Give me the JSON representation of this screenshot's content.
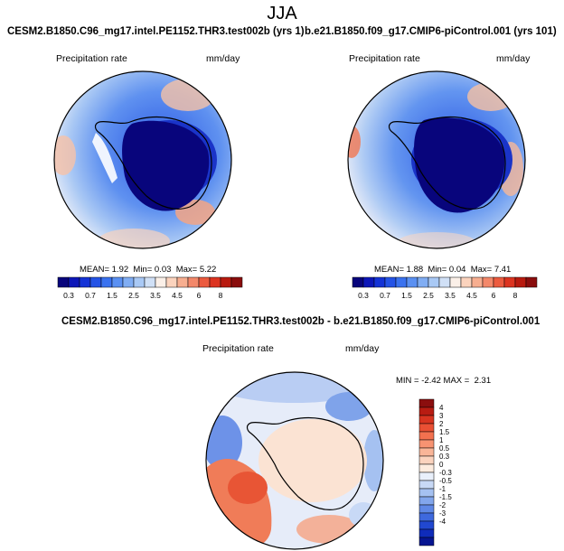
{
  "page_title": "JJA",
  "chart_data": [
    {
      "type": "heatmap",
      "title": "CESM2.B1850.C96_mg17.intel.PE1152.THR3.test002b (yrs 1)",
      "variable": "Precipitation rate",
      "units": "mm/day",
      "stats": {
        "mean_label": "MEAN=",
        "mean": "1.92",
        "min_label": "Min=",
        "min": "0.03",
        "max_label": "Max=",
        "max": "5.22"
      },
      "colorbar": {
        "orientation": "horizontal",
        "labels": [
          "0.3",
          "0.7",
          "1.5",
          "2.5",
          "3.5",
          "4.5",
          "6",
          "8"
        ],
        "colors": [
          "#08057c",
          "#0d17b8",
          "#1433d6",
          "#2453e6",
          "#3a72ef",
          "#5a90f2",
          "#80adf3",
          "#a9c9f5",
          "#d0e0f6",
          "#fbf0e8",
          "#fbd3bd",
          "#f7ae90",
          "#f3886a",
          "#ec5b3f",
          "#dc3420",
          "#b81a0f",
          "#8a0d0d"
        ]
      }
    },
    {
      "type": "heatmap",
      "title": "b.e21.B1850.f09_g17.CMIP6-piControl.001 (yrs 101)",
      "variable": "Precipitation rate",
      "units": "mm/day",
      "stats": {
        "mean_label": "MEAN=",
        "mean": "1.88",
        "min_label": "Min=",
        "min": "0.04",
        "max_label": "Max=",
        "max": "7.41"
      },
      "colorbar": {
        "orientation": "horizontal",
        "labels": [
          "0.3",
          "0.7",
          "1.5",
          "2.5",
          "3.5",
          "4.5",
          "6",
          "8"
        ],
        "colors": [
          "#08057c",
          "#0d17b8",
          "#1433d6",
          "#2453e6",
          "#3a72ef",
          "#5a90f2",
          "#80adf3",
          "#a9c9f5",
          "#d0e0f6",
          "#fbf0e8",
          "#fbd3bd",
          "#f7ae90",
          "#f3886a",
          "#ec5b3f",
          "#dc3420",
          "#b81a0f",
          "#8a0d0d"
        ]
      }
    },
    {
      "type": "heatmap",
      "title": "CESM2.B1850.C96_mg17.intel.PE1152.THR3.test002b - b.e21.B1850.f09_g17.CMIP6-piControl.001",
      "variable": "Precipitation rate",
      "units": "mm/day",
      "stats": {
        "min_label": "MIN =",
        "min": "-2.42",
        "max_label": "MAX =",
        "max": "2.31"
      },
      "colorbar": {
        "orientation": "vertical",
        "labels": [
          "4",
          "3",
          "2",
          "1.5",
          "1",
          "0.5",
          "0.3",
          "0",
          "-0.3",
          "-0.5",
          "-1",
          "-1.5",
          "-2",
          "-3",
          "-4"
        ],
        "colors": [
          "#8b0e0e",
          "#b81c12",
          "#d83420",
          "#ea5034",
          "#f3714f",
          "#f79372",
          "#f9b598",
          "#fbd3be",
          "#fdecdf",
          "#e9f0fb",
          "#c8d9f6",
          "#a5c1f1",
          "#82a6ec",
          "#5f88e6",
          "#3e69de",
          "#2148d0",
          "#0f2cba",
          "#061591"
        ]
      }
    }
  ]
}
